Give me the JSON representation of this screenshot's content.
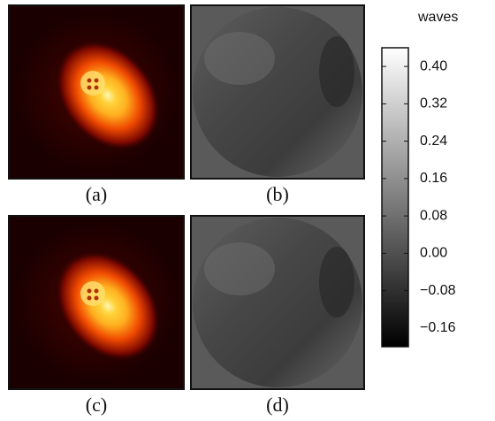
{
  "panels": {
    "labels": [
      "(a)",
      "(b)",
      "(c)",
      "(d)"
    ]
  },
  "colorbar": {
    "title": "waves",
    "lim": [
      -0.2,
      0.44
    ],
    "ticks": [
      {
        "value": 0.4,
        "label": "0.40"
      },
      {
        "value": 0.32,
        "label": "0.32"
      },
      {
        "value": 0.24,
        "label": "0.24"
      },
      {
        "value": 0.16,
        "label": "0.16"
      },
      {
        "value": 0.08,
        "label": "0.08"
      },
      {
        "value": 0,
        "label": "0.00"
      },
      {
        "value": -0.08,
        "label": "−0.08"
      },
      {
        "value": -0.16,
        "label": "−0.16"
      }
    ]
  }
}
